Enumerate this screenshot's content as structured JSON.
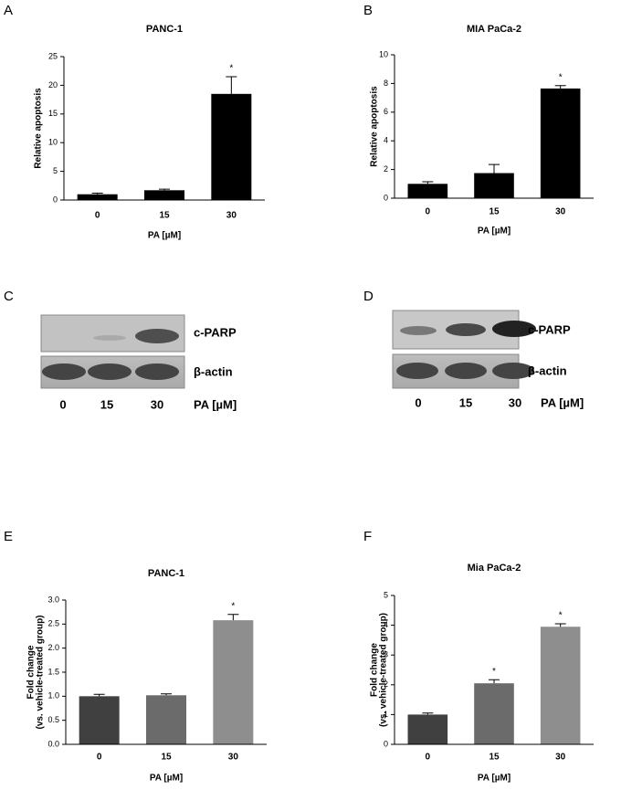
{
  "panels": [
    "A",
    "B",
    "C",
    "D",
    "E",
    "F"
  ],
  "chart_data": [
    {
      "type": "bar",
      "title": "PANC-1",
      "xlabel": "PA [µM]",
      "ylabel": [
        "Relative apoptosis"
      ],
      "categories": [
        "0",
        "15",
        "30"
      ],
      "values": [
        1.0,
        1.7,
        18.5
      ],
      "errors": [
        0.2,
        0.2,
        3.0
      ],
      "colors": [
        "#000000",
        "#000000",
        "#000000"
      ],
      "annotations": [
        null,
        null,
        "*"
      ],
      "ylim": [
        0,
        25
      ],
      "yticks": [
        0,
        5,
        10,
        15,
        20,
        25
      ]
    },
    {
      "type": "bar",
      "title": "MIA PaCa-2",
      "xlabel": "PA [µM]",
      "ylabel": [
        "Relative apoptosis"
      ],
      "categories": [
        "0",
        "15",
        "30"
      ],
      "values": [
        1.0,
        1.75,
        7.65
      ],
      "errors": [
        0.15,
        0.6,
        0.2
      ],
      "colors": [
        "#000000",
        "#000000",
        "#000000"
      ],
      "annotations": [
        null,
        null,
        "*"
      ],
      "ylim": [
        0,
        10
      ],
      "yticks": [
        0,
        2,
        4,
        6,
        8,
        10
      ]
    },
    {
      "type": "bar",
      "title": "PANC-1",
      "xlabel": "PA [µM]",
      "ylabel": [
        "Fold change",
        "(vs. vehicle-treated group)"
      ],
      "categories": [
        "0",
        "15",
        "30"
      ],
      "values": [
        1.0,
        1.02,
        2.58
      ],
      "errors": [
        0.04,
        0.03,
        0.12
      ],
      "colors": [
        "#404040",
        "#6b6b6b",
        "#8e8e8e"
      ],
      "annotations": [
        null,
        null,
        "*"
      ],
      "ylim": [
        0,
        3
      ],
      "yticks": [
        {
          "value": 0,
          "label": "0.0"
        },
        {
          "value": 0.5,
          "label": "0.5"
        },
        {
          "value": 1,
          "label": "1.0"
        },
        {
          "value": 1.5,
          "label": "1.5"
        },
        {
          "value": 2,
          "label": "2.0"
        },
        {
          "value": 2.5,
          "label": "2.5"
        },
        {
          "value": 3,
          "label": "3.0"
        }
      ]
    },
    {
      "type": "bar",
      "title": "Mia PaCa-2",
      "xlabel": "PA [µM]",
      "ylabel": [
        "Fold change",
        "(vs. vehicle-treated group)"
      ],
      "categories": [
        "0",
        "15",
        "30"
      ],
      "values": [
        1.0,
        2.05,
        3.95
      ],
      "errors": [
        0.05,
        0.12,
        0.1
      ],
      "colors": [
        "#404040",
        "#6b6b6b",
        "#8e8e8e"
      ],
      "annotations": [
        null,
        "*",
        "*"
      ],
      "ylim": [
        0,
        5
      ],
      "yticks": [
        0,
        1,
        2,
        3,
        4,
        5
      ]
    }
  ],
  "blots": [
    {
      "labels": [
        "c-PARP",
        "β-actin"
      ],
      "categories": [
        "0",
        "15",
        "30"
      ],
      "xlabel": "PA [µM]"
    },
    {
      "labels": [
        "c-PARP",
        "β-actin"
      ],
      "categories": [
        "0",
        "15",
        "30"
      ],
      "xlabel": "PA [µM]"
    }
  ]
}
